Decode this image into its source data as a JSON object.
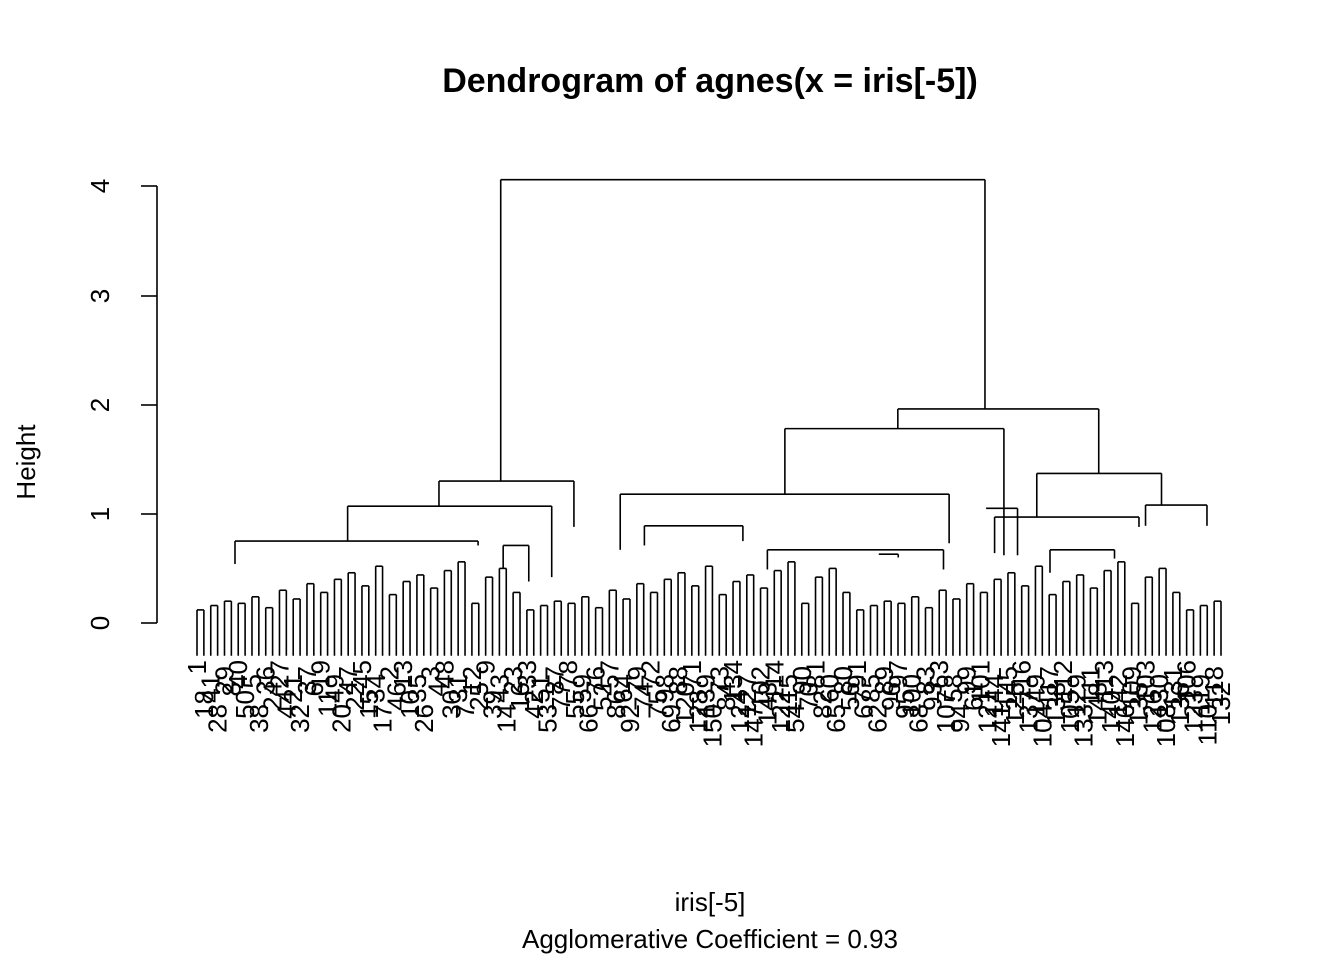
{
  "chart_data": {
    "type": "dendrogram",
    "title": "Dendrogram of  agnes(x = iris[-5])",
    "xlabel": "iris[-5]",
    "sublabel": "Agglomerative Coefficient =  0.93",
    "ylabel": "Height",
    "ylim": [
      0,
      4.1
    ],
    "yticks": [
      0,
      1,
      2,
      3,
      4
    ],
    "leaves": [
      "1",
      "18",
      "41",
      "28",
      "29",
      "8",
      "40",
      "50",
      "5",
      "38",
      "36",
      "24",
      "27",
      "44",
      "21",
      "32",
      "37",
      "6",
      "19",
      "11",
      "49",
      "20",
      "47",
      "22",
      "45",
      "15",
      "34",
      "17",
      "2",
      "46",
      "13",
      "10",
      "35",
      "26",
      "3",
      "4",
      "48",
      "30",
      "31",
      "7",
      "12",
      "25",
      "9",
      "39",
      "43",
      "14",
      "23",
      "16",
      "33",
      "42",
      "51",
      "53",
      "87",
      "77",
      "78",
      "55",
      "59",
      "66",
      "76",
      "52",
      "57",
      "86",
      "64",
      "92",
      "79",
      "74",
      "72",
      "75",
      "98",
      "69",
      "88",
      "120",
      "71",
      "128",
      "139",
      "150",
      "73",
      "84",
      "134",
      "124",
      "127",
      "147",
      "102",
      "143",
      "114",
      "122",
      "115",
      "54",
      "90",
      "70",
      "81",
      "82",
      "60",
      "65",
      "80",
      "56",
      "91",
      "67",
      "85",
      "62",
      "89",
      "96",
      "97",
      "95",
      "100",
      "68",
      "83",
      "93",
      "63",
      "107",
      "58",
      "94",
      "99",
      "61",
      "101",
      "121",
      "144",
      "141",
      "145",
      "125",
      "116",
      "137",
      "149",
      "104",
      "117",
      "138",
      "112",
      "105",
      "129",
      "133",
      "111",
      "148",
      "113",
      "140",
      "142",
      "146",
      "109",
      "135",
      "103",
      "126",
      "130",
      "108",
      "131",
      "136",
      "106",
      "123",
      "119",
      "110",
      "118",
      "132"
    ],
    "merges": [
      {
        "x": 0.4976,
        "height": 4.06
      },
      {
        "x": 0.7695,
        "height": 1.96
      },
      {
        "x": 0.6844,
        "height": 1.78
      },
      {
        "x": 0.5741,
        "height": 1.18
      },
      {
        "x": 0.2966,
        "height": 1.3
      },
      {
        "x": 0.2363,
        "height": 1.07
      },
      {
        "x": 0.1471,
        "height": 0.75
      },
      {
        "x": 0.4133,
        "height": 0.71
      },
      {
        "x": 0.8806,
        "height": 1.37
      },
      {
        "x": 0.9419,
        "height": 1.08
      },
      {
        "x": 0.8201,
        "height": 0.97
      },
      {
        "x": 0.6233,
        "height": 0.89
      },
      {
        "x": 0.6658,
        "height": 0.63
      },
      {
        "x": 0.6233,
        "height": 0.62
      },
      {
        "x": 0.7555,
        "height": 0.67
      },
      {
        "x": 0.7963,
        "height": 0.56
      },
      {
        "x": 0.788,
        "height": 1.05
      },
      {
        "x": 0.824,
        "height": 0.66
      },
      {
        "x": 0.543,
        "height": 0.71
      }
    ]
  }
}
